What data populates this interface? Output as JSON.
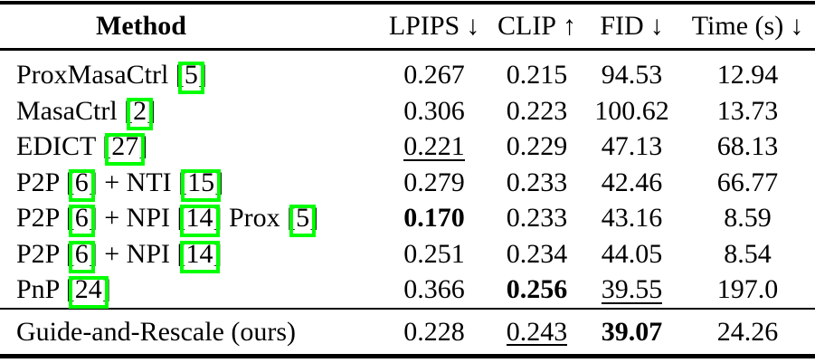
{
  "annotation": {
    "color": "#00ff00",
    "meaning": "bounding boxes drawn around citation reference numbers"
  },
  "table": {
    "columns": [
      {
        "key": "method",
        "label": "Method",
        "arrow": ""
      },
      {
        "key": "lpips",
        "label": "LPIPS",
        "arrow": "↓"
      },
      {
        "key": "clip",
        "label": "CLIP",
        "arrow": "↑"
      },
      {
        "key": "fid",
        "label": "FID",
        "arrow": "↓"
      },
      {
        "key": "time",
        "label": "Time (s)",
        "arrow": "↓"
      }
    ],
    "rows": [
      {
        "group": "body",
        "method": [
          {
            "t": "ProxMasaCtrl ["
          },
          {
            "c": "5"
          },
          {
            "t": "]"
          }
        ],
        "lpips": {
          "v": "0.267",
          "style": ""
        },
        "clip": {
          "v": "0.215",
          "style": ""
        },
        "fid": {
          "v": "94.53",
          "style": ""
        },
        "time": {
          "v": "12.94",
          "style": ""
        }
      },
      {
        "group": "body",
        "method": [
          {
            "t": "MasaCtrl ["
          },
          {
            "c": "2"
          },
          {
            "t": "]"
          }
        ],
        "lpips": {
          "v": "0.306",
          "style": ""
        },
        "clip": {
          "v": "0.223",
          "style": ""
        },
        "fid": {
          "v": "100.62",
          "style": ""
        },
        "time": {
          "v": "13.73",
          "style": ""
        }
      },
      {
        "group": "body",
        "method": [
          {
            "t": "EDICT ["
          },
          {
            "c": "27"
          },
          {
            "t": "]"
          }
        ],
        "lpips": {
          "v": "0.221",
          "style": "underline"
        },
        "clip": {
          "v": "0.229",
          "style": ""
        },
        "fid": {
          "v": "47.13",
          "style": ""
        },
        "time": {
          "v": "68.13",
          "style": ""
        }
      },
      {
        "group": "body",
        "method": [
          {
            "t": "P2P ["
          },
          {
            "c": "6"
          },
          {
            "t": "] + NTI ["
          },
          {
            "c": "15"
          },
          {
            "t": "]"
          }
        ],
        "lpips": {
          "v": "0.279",
          "style": ""
        },
        "clip": {
          "v": "0.233",
          "style": ""
        },
        "fid": {
          "v": "42.46",
          "style": ""
        },
        "time": {
          "v": "66.77",
          "style": ""
        }
      },
      {
        "group": "body",
        "method": [
          {
            "t": "P2P ["
          },
          {
            "c": "6"
          },
          {
            "t": "] + NPI ["
          },
          {
            "c": "14"
          },
          {
            "t": "] Prox ["
          },
          {
            "c": "5"
          },
          {
            "t": "]"
          }
        ],
        "lpips": {
          "v": "0.170",
          "style": "bold"
        },
        "clip": {
          "v": "0.233",
          "style": ""
        },
        "fid": {
          "v": "43.16",
          "style": ""
        },
        "time": {
          "v": "8.59",
          "style": ""
        }
      },
      {
        "group": "body",
        "method": [
          {
            "t": "P2P ["
          },
          {
            "c": "6"
          },
          {
            "t": "] + NPI ["
          },
          {
            "c": "14"
          },
          {
            "t": "]"
          }
        ],
        "lpips": {
          "v": "0.251",
          "style": ""
        },
        "clip": {
          "v": "0.234",
          "style": ""
        },
        "fid": {
          "v": "44.05",
          "style": ""
        },
        "time": {
          "v": "8.54",
          "style": ""
        }
      },
      {
        "group": "body",
        "method": [
          {
            "t": "PnP ["
          },
          {
            "c": "24"
          },
          {
            "t": "]"
          }
        ],
        "lpips": {
          "v": "0.366",
          "style": ""
        },
        "clip": {
          "v": "0.256",
          "style": "bold"
        },
        "fid": {
          "v": "39.55",
          "style": "underline"
        },
        "time": {
          "v": "197.0",
          "style": ""
        }
      },
      {
        "group": "ours",
        "method": [
          {
            "t": "Guide-and-Rescale (ours)"
          }
        ],
        "lpips": {
          "v": "0.228",
          "style": ""
        },
        "clip": {
          "v": "0.243",
          "style": "underline"
        },
        "fid": {
          "v": "39.07",
          "style": "bold"
        },
        "time": {
          "v": "24.26",
          "style": ""
        }
      }
    ]
  }
}
